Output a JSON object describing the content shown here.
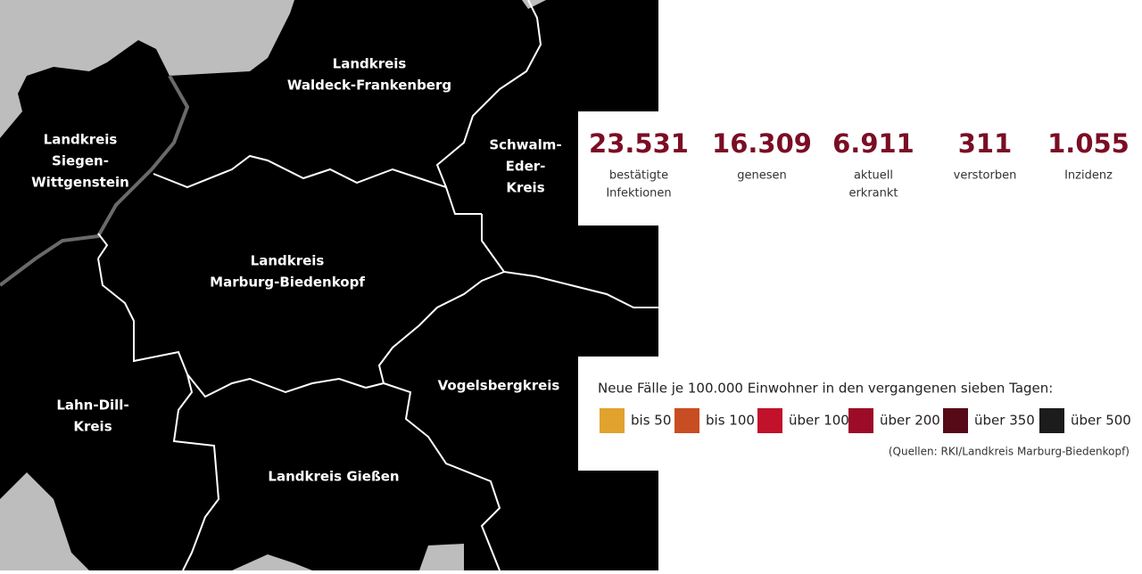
{
  "regions": [
    {
      "lines": [
        "Landkreis",
        "Waldeck-Frankenberg"
      ]
    },
    {
      "lines": [
        "Landkreis",
        "Siegen-",
        "Wittgenstein"
      ]
    },
    {
      "lines": [
        "Schwalm-",
        "Eder-",
        "Kreis"
      ]
    },
    {
      "lines": [
        "Landkreis",
        "Marburg-Biedenkopf"
      ]
    },
    {
      "lines": [
        "Lahn-Dill-",
        "Kreis"
      ]
    },
    {
      "lines": [
        "Vogelsbergkreis"
      ]
    },
    {
      "lines": [
        "Landkreis Gießen"
      ]
    }
  ],
  "stats": [
    {
      "value": "23.531",
      "lines": [
        "bestätigte",
        "Infektionen"
      ]
    },
    {
      "value": "16.309",
      "lines": [
        "genesen"
      ]
    },
    {
      "value": "6.911",
      "lines": [
        "aktuell",
        "erkrankt"
      ]
    },
    {
      "value": "311",
      "lines": [
        "verstorben"
      ]
    },
    {
      "value": "1.055",
      "lines": [
        "Inzidenz"
      ]
    }
  ],
  "legend": {
    "title": "Neue Fälle je 100.000 Einwohner in den vergangenen sieben Tagen:",
    "items": [
      {
        "label": "bis 50",
        "color": "#e1a22e"
      },
      {
        "label": "bis 100",
        "color": "#c94d22"
      },
      {
        "label": "über 100",
        "color": "#c1112b"
      },
      {
        "label": "über 200",
        "color": "#9c0c28"
      },
      {
        "label": "über 350",
        "color": "#560916"
      },
      {
        "label": "über 500",
        "color": "#1c1c1c"
      }
    ],
    "source": "(Quellen: RKI/Landkreis Marburg-Biedenkopf)"
  }
}
